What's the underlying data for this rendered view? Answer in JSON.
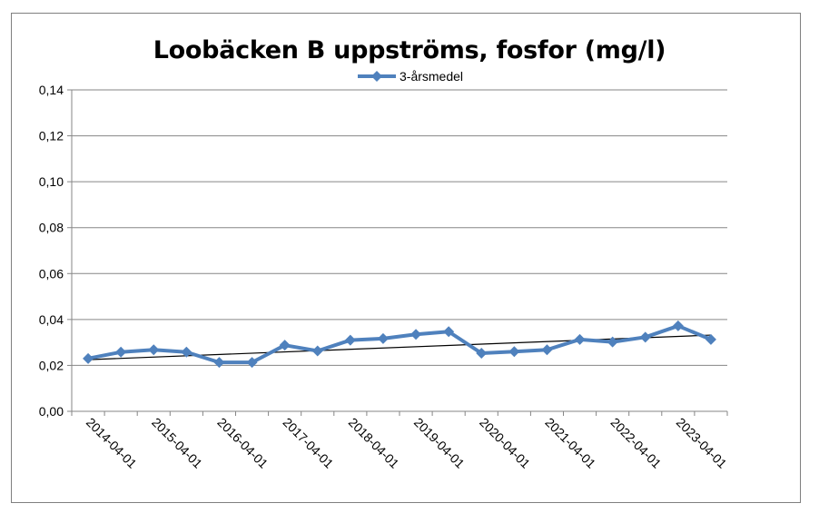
{
  "chart_data": {
    "type": "line",
    "title": "Loobäcken B uppströms, fosfor (mg/l)",
    "xlabel": "",
    "ylabel": "",
    "ylim": [
      0,
      0.14
    ],
    "y_ticks": [
      "0,00",
      "0,02",
      "0,04",
      "0,06",
      "0,08",
      "0,10",
      "0,12",
      "0,14"
    ],
    "x_tick_labels": [
      "2014-04-01",
      "2015-04-01",
      "2016-04-01",
      "2017-04-01",
      "2018-04-01",
      "2019-04-01",
      "2020-04-01",
      "2021-04-01",
      "2022-04-01",
      "2023-04-01"
    ],
    "x_dates": [
      "2014-04-01",
      "2014-10-01",
      "2015-04-01",
      "2015-10-01",
      "2016-04-01",
      "2016-10-01",
      "2017-04-01",
      "2017-10-01",
      "2018-04-01",
      "2018-10-01",
      "2019-04-01",
      "2019-10-01",
      "2020-04-01",
      "2020-10-01",
      "2021-04-01",
      "2021-10-01",
      "2022-04-01",
      "2022-10-01",
      "2023-04-01",
      "2023-10-01"
    ],
    "series": [
      {
        "name": "3-årsmedel",
        "color": "#4f81bd",
        "values": [
          0.023,
          0.0258,
          0.0268,
          0.0258,
          0.0213,
          0.0213,
          0.0288,
          0.0263,
          0.031,
          0.0317,
          0.0335,
          0.0347,
          0.0253,
          0.026,
          0.0268,
          0.0313,
          0.0302,
          0.0323,
          0.0372,
          0.0313
        ]
      }
    ],
    "trendline": {
      "start": 0.0225,
      "end": 0.0332,
      "color": "#000000"
    },
    "grid": true,
    "legend_position": "top-center"
  }
}
